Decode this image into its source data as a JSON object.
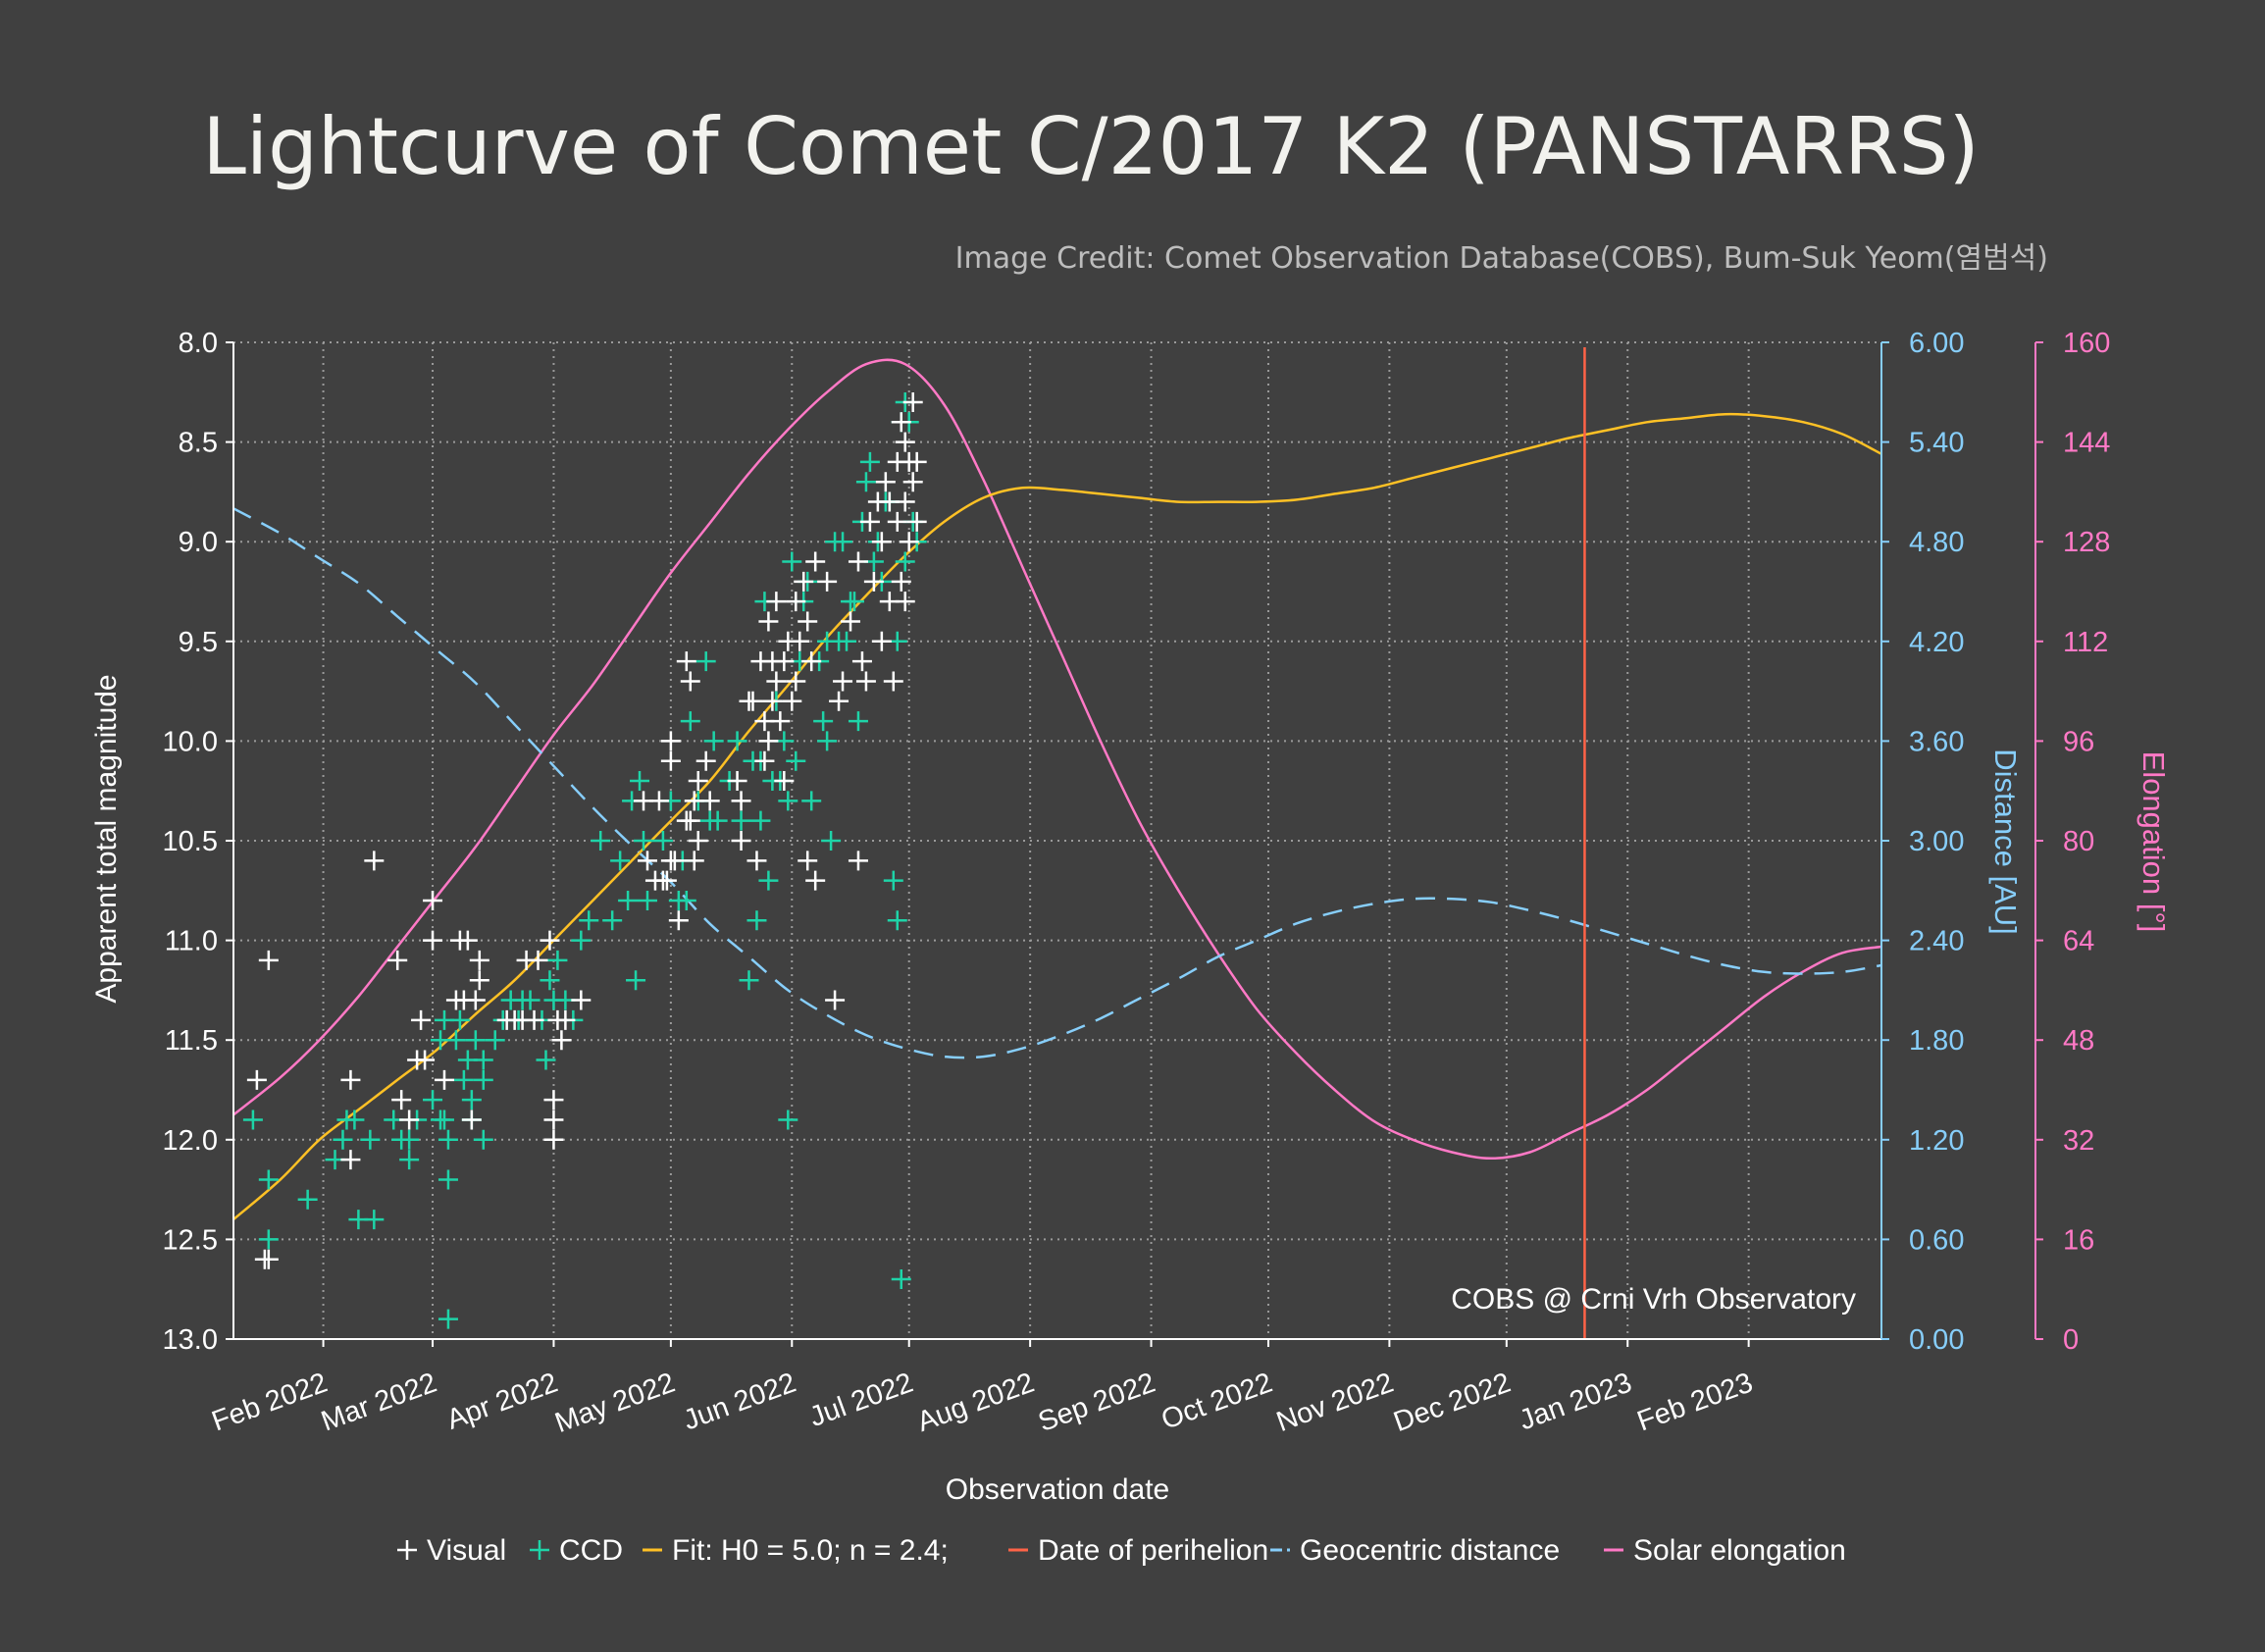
{
  "title": "Lightcurve of Comet C/2017 K2 (PANSTARRS)",
  "credit": "Image Credit: Comet Observation Database(COBS), Bum-Suk Yeom(염범석)",
  "observatory": "COBS @ Crni Vrh Observatory",
  "colors": {
    "background": "#404040",
    "visual": "#ffffff",
    "ccd": "#1ed4a8",
    "fit": "#ffc125",
    "perihelion": "#ff6347",
    "distance": "#87cefa",
    "elongation": "#ff79c6"
  },
  "chart_data": {
    "type": "scatter",
    "title": "Lightcurve of Comet C/2017 K2 (PANSTARRS)",
    "xlabel": "Observation date",
    "ylabel": "Apparent total magnitude",
    "y2label": "Distance [AU]",
    "y3label": "Elongation [°]",
    "x_unit": "days since 2022-01-01",
    "xlim": [
      8,
      430
    ],
    "ylim": [
      13.0,
      8.0
    ],
    "y2lim": [
      0,
      6
    ],
    "y3lim": [
      0,
      160
    ],
    "x_ticks": [
      {
        "label": "Feb 2022",
        "day": 31
      },
      {
        "label": "Mar 2022",
        "day": 59
      },
      {
        "label": "Apr 2022",
        "day": 90
      },
      {
        "label": "May 2022",
        "day": 120
      },
      {
        "label": "Jun 2022",
        "day": 151
      },
      {
        "label": "Jul 2022",
        "day": 181
      },
      {
        "label": "Aug 2022",
        "day": 212
      },
      {
        "label": "Sep 2022",
        "day": 243
      },
      {
        "label": "Oct 2022",
        "day": 273
      },
      {
        "label": "Nov 2022",
        "day": 304
      },
      {
        "label": "Dec 2022",
        "day": 334
      },
      {
        "label": "Jan 2023",
        "day": 365
      },
      {
        "label": "Feb 2023",
        "day": 396
      }
    ],
    "y_ticks": [
      "8.0",
      "8.5",
      "9.0",
      "9.5",
      "10.0",
      "10.5",
      "11.0",
      "11.5",
      "12.0",
      "12.5",
      "13.0"
    ],
    "y2_ticks": [
      "0.00",
      "0.60",
      "1.20",
      "1.80",
      "2.40",
      "3.00",
      "3.60",
      "4.20",
      "4.80",
      "5.40",
      "6.00"
    ],
    "y3_ticks": [
      "0",
      "16",
      "32",
      "48",
      "64",
      "80",
      "96",
      "112",
      "128",
      "144",
      "160"
    ],
    "perihelion_day": 354,
    "legend": [
      {
        "key": "visual",
        "label": "Visual"
      },
      {
        "key": "ccd",
        "label": "CCD"
      },
      {
        "key": "fit",
        "label": "Fit: H0 = 5.0; n = 2.4;"
      },
      {
        "key": "perihelion",
        "label": "Date of perihelion"
      },
      {
        "key": "distance",
        "label": "Geocentric distance"
      },
      {
        "key": "elongation",
        "label": "Solar elongation"
      }
    ],
    "fit_curve": [
      [
        8,
        12.4
      ],
      [
        20,
        12.2
      ],
      [
        30,
        12.0
      ],
      [
        40,
        11.85
      ],
      [
        50,
        11.7
      ],
      [
        60,
        11.55
      ],
      [
        70,
        11.37
      ],
      [
        80,
        11.2
      ],
      [
        90,
        11.0
      ],
      [
        100,
        10.8
      ],
      [
        110,
        10.6
      ],
      [
        120,
        10.4
      ],
      [
        130,
        10.2
      ],
      [
        140,
        9.95
      ],
      [
        150,
        9.72
      ],
      [
        160,
        9.48
      ],
      [
        170,
        9.27
      ],
      [
        180,
        9.07
      ],
      [
        190,
        8.9
      ],
      [
        200,
        8.78
      ],
      [
        210,
        8.73
      ],
      [
        220,
        8.74
      ],
      [
        230,
        8.76
      ],
      [
        240,
        8.78
      ],
      [
        250,
        8.8
      ],
      [
        260,
        8.8
      ],
      [
        270,
        8.8
      ],
      [
        280,
        8.79
      ],
      [
        290,
        8.76
      ],
      [
        300,
        8.73
      ],
      [
        310,
        8.68
      ],
      [
        320,
        8.63
      ],
      [
        330,
        8.58
      ],
      [
        340,
        8.53
      ],
      [
        350,
        8.48
      ],
      [
        360,
        8.44
      ],
      [
        370,
        8.4
      ],
      [
        380,
        8.38
      ],
      [
        390,
        8.36
      ],
      [
        400,
        8.37
      ],
      [
        410,
        8.4
      ],
      [
        420,
        8.46
      ],
      [
        430,
        8.56
      ]
    ],
    "distance_curve": [
      [
        8,
        5.0
      ],
      [
        20,
        4.85
      ],
      [
        30,
        4.7
      ],
      [
        40,
        4.55
      ],
      [
        50,
        4.35
      ],
      [
        60,
        4.15
      ],
      [
        70,
        3.95
      ],
      [
        80,
        3.7
      ],
      [
        90,
        3.45
      ],
      [
        100,
        3.2
      ],
      [
        110,
        2.97
      ],
      [
        120,
        2.75
      ],
      [
        130,
        2.5
      ],
      [
        140,
        2.3
      ],
      [
        150,
        2.1
      ],
      [
        160,
        1.95
      ],
      [
        170,
        1.83
      ],
      [
        180,
        1.75
      ],
      [
        190,
        1.7
      ],
      [
        200,
        1.7
      ],
      [
        210,
        1.75
      ],
      [
        220,
        1.83
      ],
      [
        230,
        1.93
      ],
      [
        240,
        2.05
      ],
      [
        250,
        2.17
      ],
      [
        260,
        2.3
      ],
      [
        270,
        2.4
      ],
      [
        280,
        2.5
      ],
      [
        290,
        2.57
      ],
      [
        300,
        2.62
      ],
      [
        310,
        2.65
      ],
      [
        320,
        2.65
      ],
      [
        330,
        2.63
      ],
      [
        340,
        2.58
      ],
      [
        350,
        2.52
      ],
      [
        360,
        2.45
      ],
      [
        370,
        2.38
      ],
      [
        380,
        2.31
      ],
      [
        390,
        2.25
      ],
      [
        400,
        2.21
      ],
      [
        410,
        2.2
      ],
      [
        420,
        2.21
      ],
      [
        430,
        2.25
      ]
    ],
    "elongation_curve": [
      [
        8,
        36
      ],
      [
        20,
        42
      ],
      [
        30,
        48
      ],
      [
        40,
        55
      ],
      [
        50,
        63
      ],
      [
        60,
        71
      ],
      [
        70,
        79
      ],
      [
        80,
        88
      ],
      [
        90,
        97
      ],
      [
        100,
        105
      ],
      [
        110,
        114
      ],
      [
        120,
        123
      ],
      [
        130,
        131
      ],
      [
        140,
        139
      ],
      [
        150,
        146
      ],
      [
        160,
        152
      ],
      [
        170,
        156.5
      ],
      [
        180,
        156.5
      ],
      [
        190,
        150
      ],
      [
        200,
        138
      ],
      [
        210,
        124
      ],
      [
        220,
        110
      ],
      [
        230,
        96
      ],
      [
        240,
        83
      ],
      [
        250,
        72
      ],
      [
        260,
        62
      ],
      [
        270,
        53
      ],
      [
        280,
        46
      ],
      [
        290,
        40
      ],
      [
        300,
        35
      ],
      [
        310,
        32
      ],
      [
        320,
        30
      ],
      [
        330,
        29
      ],
      [
        340,
        30
      ],
      [
        350,
        33
      ],
      [
        360,
        36
      ],
      [
        370,
        40
      ],
      [
        380,
        45
      ],
      [
        390,
        50
      ],
      [
        400,
        55
      ],
      [
        410,
        59
      ],
      [
        420,
        62
      ],
      [
        430,
        63
      ]
    ],
    "visual_points": [
      [
        17,
        11.1
      ],
      [
        17,
        12.6
      ],
      [
        16,
        12.6
      ],
      [
        14,
        11.7
      ],
      [
        38,
        11.7
      ],
      [
        38,
        12.1
      ],
      [
        44,
        10.6
      ],
      [
        50,
        11.1
      ],
      [
        53,
        11.9
      ],
      [
        51,
        11.8
      ],
      [
        59,
        10.8
      ],
      [
        59,
        11.0
      ],
      [
        62,
        11.7
      ],
      [
        55,
        11.6
      ],
      [
        56,
        11.4
      ],
      [
        57,
        11.6
      ],
      [
        66,
        11.0
      ],
      [
        68,
        11.0
      ],
      [
        65,
        11.3
      ],
      [
        67,
        11.3
      ],
      [
        70,
        11.3
      ],
      [
        71,
        11.2
      ],
      [
        71,
        11.1
      ],
      [
        69,
        11.9
      ],
      [
        78,
        11.4
      ],
      [
        80,
        11.4
      ],
      [
        83,
        11.1
      ],
      [
        82,
        11.4
      ],
      [
        85,
        11.4
      ],
      [
        86,
        11.1
      ],
      [
        89,
        11.0
      ],
      [
        91,
        11.4
      ],
      [
        92,
        11.5
      ],
      [
        93,
        11.4
      ],
      [
        90,
        11.8
      ],
      [
        90,
        11.9
      ],
      [
        90,
        12.0
      ],
      [
        97,
        11.3
      ],
      [
        113,
        10.3
      ],
      [
        114,
        10.6
      ],
      [
        116,
        10.7
      ],
      [
        117,
        10.3
      ],
      [
        118,
        10.7
      ],
      [
        119,
        10.7
      ],
      [
        120,
        10.0
      ],
      [
        120,
        10.1
      ],
      [
        121,
        10.6
      ],
      [
        122,
        10.9
      ],
      [
        120,
        10.6
      ],
      [
        124,
        10.4
      ],
      [
        125,
        10.4
      ],
      [
        126,
        10.3
      ],
      [
        124,
        9.6
      ],
      [
        125,
        9.7
      ],
      [
        127,
        10.2
      ],
      [
        129,
        10.1
      ],
      [
        127,
        10.5
      ],
      [
        126,
        10.6
      ],
      [
        130,
        10.3
      ],
      [
        137,
        10.2
      ],
      [
        138,
        10.3
      ],
      [
        138,
        10.5
      ],
      [
        140,
        9.8
      ],
      [
        141,
        9.8
      ],
      [
        142,
        10.6
      ],
      [
        143,
        9.6
      ],
      [
        144,
        9.9
      ],
      [
        145,
        10.0
      ],
      [
        144,
        10.1
      ],
      [
        145,
        9.4
      ],
      [
        146,
        9.6
      ],
      [
        146,
        9.8
      ],
      [
        147,
        9.3
      ],
      [
        147,
        9.7
      ],
      [
        148,
        9.9
      ],
      [
        149,
        9.6
      ],
      [
        149,
        10.2
      ],
      [
        150,
        9.5
      ],
      [
        151,
        9.8
      ],
      [
        152,
        9.3
      ],
      [
        152,
        9.7
      ],
      [
        153,
        9.5
      ],
      [
        154,
        9.2
      ],
      [
        155,
        9.4
      ],
      [
        156,
        9.6
      ],
      [
        157,
        9.1
      ],
      [
        155,
        10.6
      ],
      [
        157,
        10.7
      ],
      [
        160,
        9.2
      ],
      [
        163,
        9.8
      ],
      [
        162,
        11.3
      ],
      [
        164,
        9.7
      ],
      [
        166,
        9.4
      ],
      [
        168,
        9.1
      ],
      [
        169,
        9.6
      ],
      [
        170,
        9.7
      ],
      [
        168,
        10.6
      ],
      [
        171,
        8.9
      ],
      [
        172,
        9.2
      ],
      [
        173,
        8.8
      ],
      [
        174,
        9.0
      ],
      [
        174,
        9.5
      ],
      [
        175,
        8.7
      ],
      [
        176,
        8.8
      ],
      [
        177,
        9.7
      ],
      [
        178,
        8.6
      ],
      [
        178,
        8.9
      ],
      [
        179,
        8.4
      ],
      [
        179,
        9.2
      ],
      [
        180,
        8.5
      ],
      [
        180,
        8.8
      ],
      [
        181,
        8.6
      ],
      [
        181,
        9.0
      ],
      [
        182,
        8.7
      ],
      [
        182,
        8.3
      ],
      [
        183,
        8.9
      ],
      [
        183,
        8.6
      ],
      [
        176,
        9.3
      ],
      [
        180,
        9.3
      ]
    ],
    "ccd_points": [
      [
        13,
        11.9
      ],
      [
        17,
        12.2
      ],
      [
        17,
        12.5
      ],
      [
        27,
        12.3
      ],
      [
        34,
        12.1
      ],
      [
        36,
        12.0
      ],
      [
        37,
        11.9
      ],
      [
        40,
        12.4
      ],
      [
        39,
        11.9
      ],
      [
        44,
        12.4
      ],
      [
        43,
        12.0
      ],
      [
        49,
        11.9
      ],
      [
        51,
        12.0
      ],
      [
        53,
        12.0
      ],
      [
        53,
        12.1
      ],
      [
        55,
        11.9
      ],
      [
        59,
        11.8
      ],
      [
        61,
        11.5
      ],
      [
        62,
        11.4
      ],
      [
        62,
        11.9
      ],
      [
        63,
        12.0
      ],
      [
        63,
        12.2
      ],
      [
        61,
        11.9
      ],
      [
        63,
        12.9
      ],
      [
        65,
        11.5
      ],
      [
        66,
        11.4
      ],
      [
        67,
        11.7
      ],
      [
        68,
        11.6
      ],
      [
        69,
        11.8
      ],
      [
        69,
        11.9
      ],
      [
        70,
        11.5
      ],
      [
        72,
        11.6
      ],
      [
        72,
        11.7
      ],
      [
        72,
        12.0
      ],
      [
        75,
        11.5
      ],
      [
        77,
        11.4
      ],
      [
        79,
        11.3
      ],
      [
        81,
        11.4
      ],
      [
        82,
        11.3
      ],
      [
        84,
        11.3
      ],
      [
        87,
        11.4
      ],
      [
        88,
        11.6
      ],
      [
        89,
        11.2
      ],
      [
        90,
        11.3
      ],
      [
        91,
        11.1
      ],
      [
        93,
        11.3
      ],
      [
        95,
        11.4
      ],
      [
        97,
        11.0
      ],
      [
        99,
        10.9
      ],
      [
        102,
        10.5
      ],
      [
        105,
        10.9
      ],
      [
        107,
        10.6
      ],
      [
        109,
        10.8
      ],
      [
        110,
        10.3
      ],
      [
        111,
        11.2
      ],
      [
        112,
        10.2
      ],
      [
        113,
        10.5
      ],
      [
        114,
        10.8
      ],
      [
        118,
        10.5
      ],
      [
        120,
        10.3
      ],
      [
        122,
        10.8
      ],
      [
        123,
        10.6
      ],
      [
        124,
        10.8
      ],
      [
        125,
        9.9
      ],
      [
        127,
        10.3
      ],
      [
        129,
        9.6
      ],
      [
        130,
        10.4
      ],
      [
        131,
        10.0
      ],
      [
        132,
        10.4
      ],
      [
        135,
        10.2
      ],
      [
        137,
        10.0
      ],
      [
        138,
        10.4
      ],
      [
        140,
        11.2
      ],
      [
        141,
        10.1
      ],
      [
        142,
        10.9
      ],
      [
        143,
        10.1
      ],
      [
        143,
        10.4
      ],
      [
        144,
        9.3
      ],
      [
        145,
        10.7
      ],
      [
        146,
        10.2
      ],
      [
        147,
        9.8
      ],
      [
        148,
        10.2
      ],
      [
        149,
        10.0
      ],
      [
        150,
        10.3
      ],
      [
        150,
        11.9
      ],
      [
        151,
        9.1
      ],
      [
        152,
        10.1
      ],
      [
        153,
        9.6
      ],
      [
        154,
        9.3
      ],
      [
        155,
        9.2
      ],
      [
        156,
        10.3
      ],
      [
        158,
        9.6
      ],
      [
        159,
        9.9
      ],
      [
        160,
        10.0
      ],
      [
        160,
        9.5
      ],
      [
        161,
        10.5
      ],
      [
        162,
        9.0
      ],
      [
        163,
        9.5
      ],
      [
        164,
        9.0
      ],
      [
        165,
        9.5
      ],
      [
        166,
        9.3
      ],
      [
        167,
        9.3
      ],
      [
        168,
        9.9
      ],
      [
        169,
        8.9
      ],
      [
        170,
        8.7
      ],
      [
        171,
        8.6
      ],
      [
        172,
        9.1
      ],
      [
        173,
        9.0
      ],
      [
        174,
        9.2
      ],
      [
        175,
        8.8
      ],
      [
        176,
        8.8
      ],
      [
        177,
        10.7
      ],
      [
        178,
        9.5
      ],
      [
        178,
        10.9
      ],
      [
        179,
        8.4
      ],
      [
        180,
        8.3
      ],
      [
        181,
        8.4
      ],
      [
        180,
        9.1
      ],
      [
        182,
        8.9
      ],
      [
        179,
        12.7
      ],
      [
        183,
        9.0
      ]
    ]
  }
}
